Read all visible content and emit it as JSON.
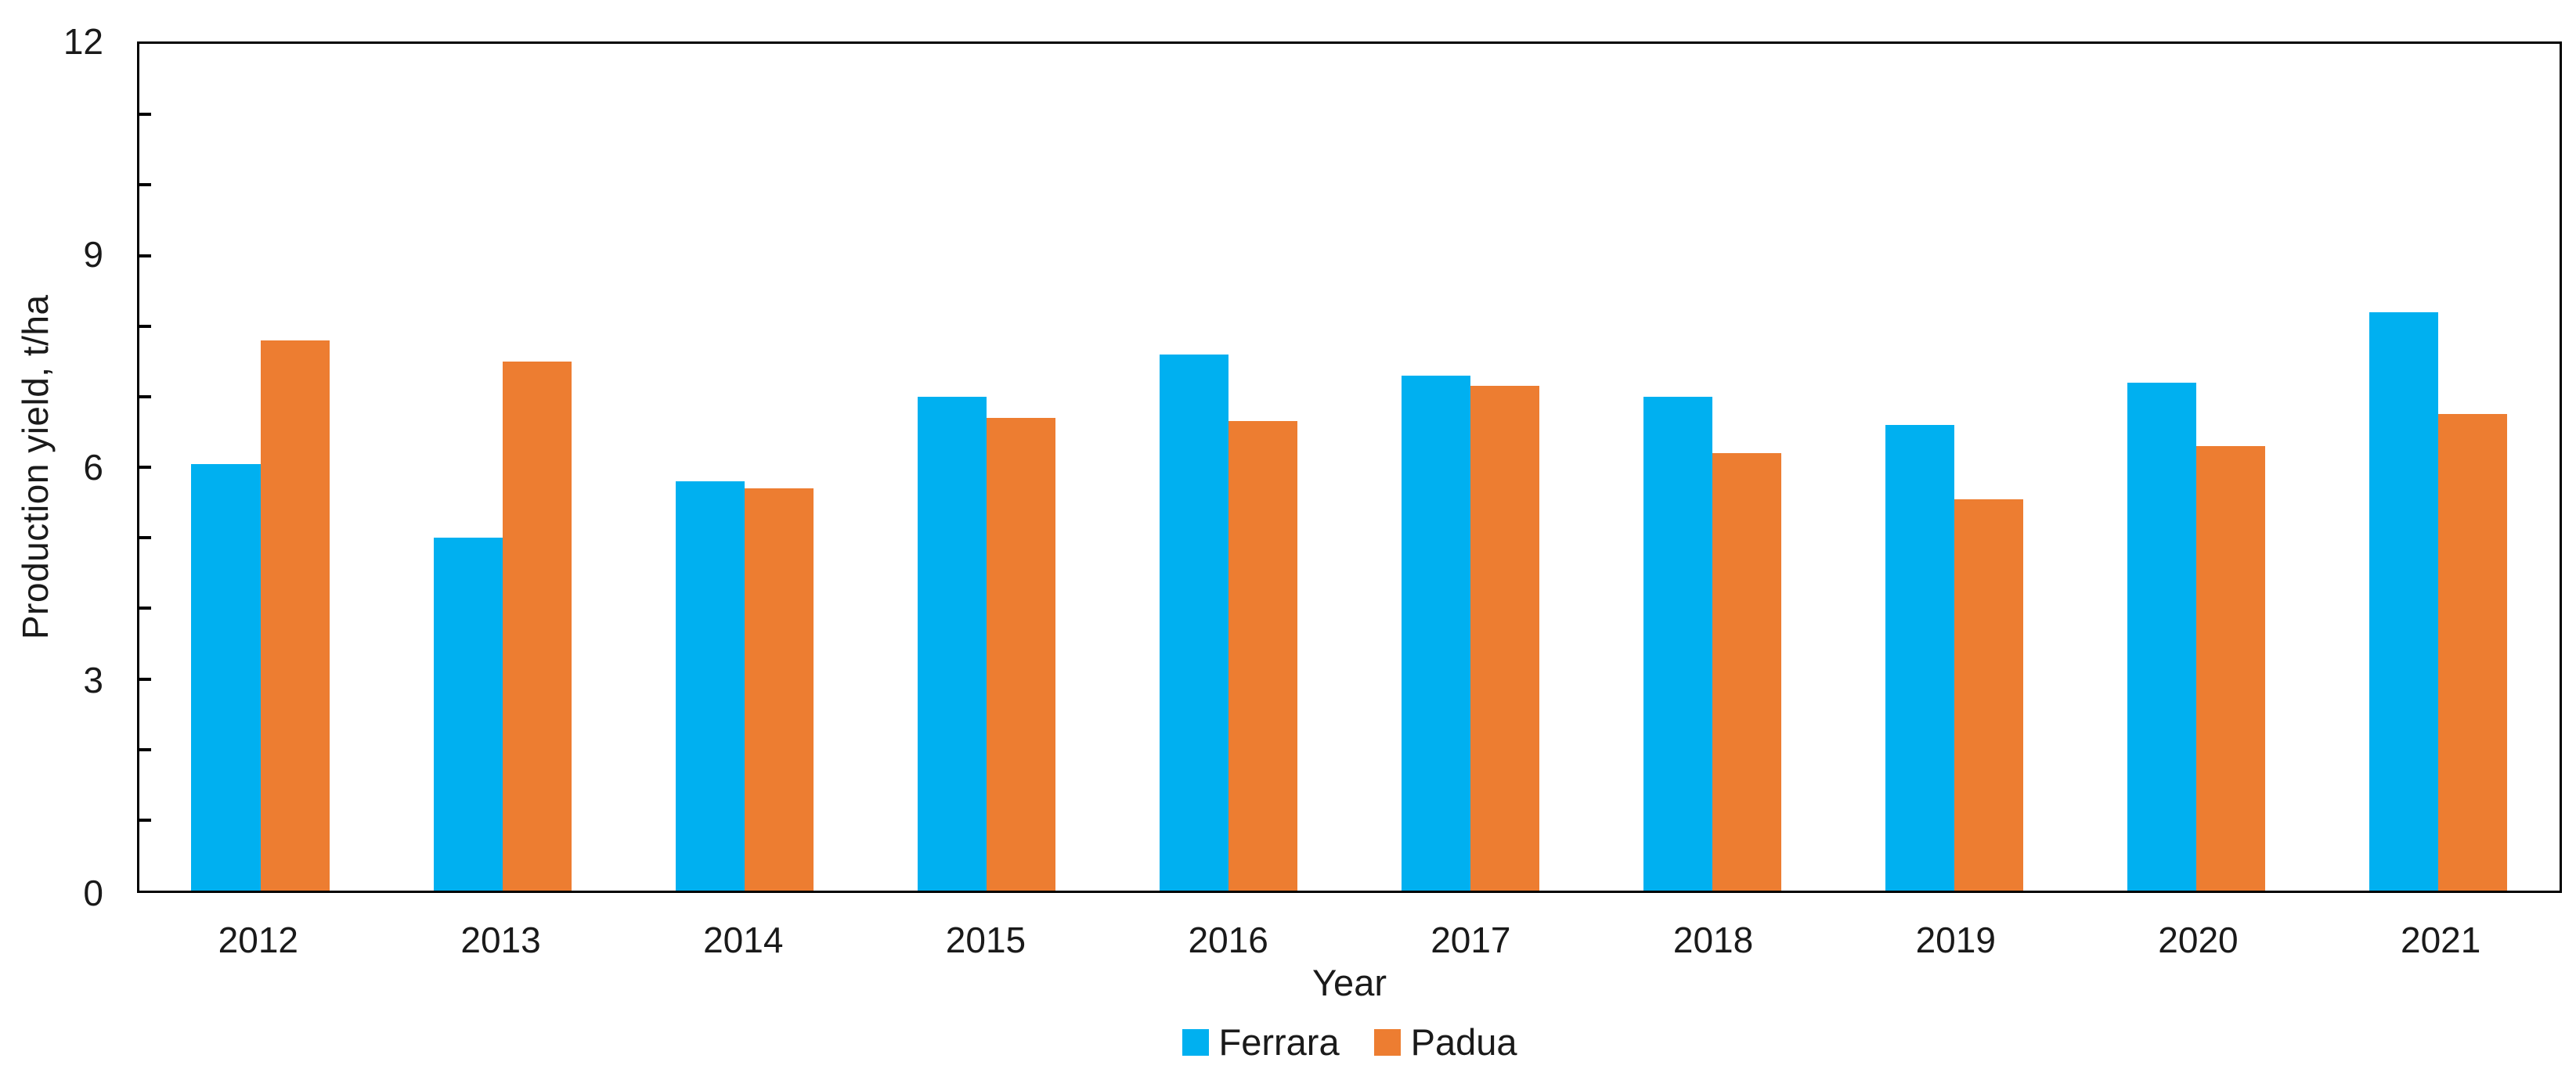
{
  "chart_data": {
    "type": "bar",
    "title": "",
    "xlabel": "Year",
    "ylabel": "Production yield, t/ha",
    "categories": [
      "2012",
      "2013",
      "2014",
      "2015",
      "2016",
      "2017",
      "2018",
      "2019",
      "2020",
      "2021"
    ],
    "series": [
      {
        "name": "Ferrara",
        "color": "#00B0F0",
        "values": [
          6.05,
          5.0,
          5.8,
          7.0,
          7.6,
          7.3,
          7.0,
          6.6,
          7.2,
          8.2
        ]
      },
      {
        "name": "Padua",
        "color": "#ED7D31",
        "values": [
          7.8,
          7.5,
          5.7,
          6.7,
          6.65,
          7.15,
          6.2,
          5.55,
          6.3,
          6.75
        ]
      }
    ],
    "ylim": [
      0,
      12
    ],
    "ytick_labels": [
      "0",
      "3",
      "6",
      "9",
      "12"
    ],
    "yticks_labeled": [
      0,
      3,
      6,
      9,
      12
    ],
    "minor_tick_step": 1,
    "grid": false,
    "legend_position": "bottom",
    "frame_color": "#000000",
    "background_color": "#ffffff"
  }
}
